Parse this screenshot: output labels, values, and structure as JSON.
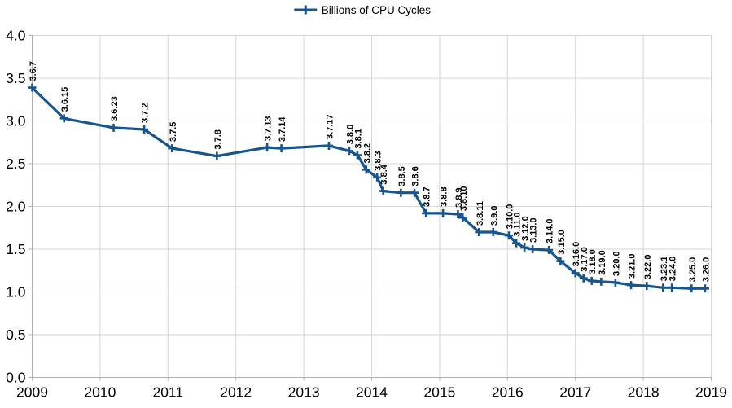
{
  "legend": {
    "label": "Billions of CPU Cycles"
  },
  "colors": {
    "series": "#17558f",
    "grid": "#d6d6d6",
    "axis": "#b0b0b0",
    "text": "#000000",
    "background": "#ffffff"
  },
  "chart_data": {
    "type": "line",
    "title": "",
    "legend_label": "Billions of CPU Cycles",
    "legend_position": "top-center",
    "grid": true,
    "marker": "plus",
    "xlim": [
      2009,
      2019
    ],
    "ylim": [
      0.0,
      4.0
    ],
    "y_tick_step": 0.5,
    "x_tick_labels": [
      "2009",
      "2010",
      "2011",
      "2012",
      "2013",
      "2014",
      "2015",
      "2016",
      "2017",
      "2018",
      "2019"
    ],
    "y_tick_labels": [
      "0.0",
      "0.5",
      "1.0",
      "1.5",
      "2.0",
      "2.5",
      "3.0",
      "3.5",
      "4.0"
    ],
    "x_ticks": [
      2009,
      2010,
      2011,
      2012,
      2013,
      2014,
      2015,
      2016,
      2017,
      2018,
      2019
    ],
    "y_ticks": [
      0.0,
      0.5,
      1.0,
      1.5,
      2.0,
      2.5,
      3.0,
      3.5,
      4.0
    ],
    "series_name": "Billions of CPU Cycles",
    "points": [
      {
        "label": "3.6.7",
        "x": 2009.0,
        "y": 3.39
      },
      {
        "label": "3.6.15",
        "x": 2009.47,
        "y": 3.03
      },
      {
        "label": "3.6.23",
        "x": 2010.2,
        "y": 2.92
      },
      {
        "label": "3.7.2",
        "x": 2010.65,
        "y": 2.9
      },
      {
        "label": "3.7.5",
        "x": 2011.06,
        "y": 2.68
      },
      {
        "label": "3.7.8",
        "x": 2011.72,
        "y": 2.59
      },
      {
        "label": "3.7.13",
        "x": 2012.46,
        "y": 2.69
      },
      {
        "label": "3.7.14",
        "x": 2012.67,
        "y": 2.68
      },
      {
        "label": "3.7.17",
        "x": 2013.37,
        "y": 2.71
      },
      {
        "label": "3.8.0",
        "x": 2013.67,
        "y": 2.65
      },
      {
        "label": "3.8.1",
        "x": 2013.79,
        "y": 2.6
      },
      {
        "label": "3.8.2",
        "x": 2013.92,
        "y": 2.43
      },
      {
        "label": "3.8.3",
        "x": 2014.08,
        "y": 2.34
      },
      {
        "label": "3.8.4",
        "x": 2014.17,
        "y": 2.18
      },
      {
        "label": "3.8.5",
        "x": 2014.43,
        "y": 2.16
      },
      {
        "label": "3.8.6",
        "x": 2014.63,
        "y": 2.16
      },
      {
        "label": "3.8.7",
        "x": 2014.8,
        "y": 1.92
      },
      {
        "label": "3.8.8",
        "x": 2015.05,
        "y": 1.92
      },
      {
        "label": "3.8.9",
        "x": 2015.27,
        "y": 1.91
      },
      {
        "label": "3.8.10",
        "x": 2015.34,
        "y": 1.87
      },
      {
        "label": "3.8.11",
        "x": 2015.58,
        "y": 1.7
      },
      {
        "label": "3.9.0",
        "x": 2015.79,
        "y": 1.7
      },
      {
        "label": "3.10.0",
        "x": 2016.02,
        "y": 1.66
      },
      {
        "label": "3.11.0",
        "x": 2016.13,
        "y": 1.57
      },
      {
        "label": "3.12.0",
        "x": 2016.25,
        "y": 1.52
      },
      {
        "label": "3.13.0",
        "x": 2016.37,
        "y": 1.5
      },
      {
        "label": "3.14.0",
        "x": 2016.61,
        "y": 1.49
      },
      {
        "label": "3.15.0",
        "x": 2016.78,
        "y": 1.36
      },
      {
        "label": "3.16.0",
        "x": 2017.0,
        "y": 1.22
      },
      {
        "label": "3.17.0",
        "x": 2017.12,
        "y": 1.16
      },
      {
        "label": "3.18.0",
        "x": 2017.24,
        "y": 1.13
      },
      {
        "label": "3.19.0",
        "x": 2017.38,
        "y": 1.12
      },
      {
        "label": "3.20.0",
        "x": 2017.59,
        "y": 1.11
      },
      {
        "label": "3.21.0",
        "x": 2017.82,
        "y": 1.08
      },
      {
        "label": "3.22.0",
        "x": 2018.05,
        "y": 1.07
      },
      {
        "label": "3.23.1",
        "x": 2018.29,
        "y": 1.05
      },
      {
        "label": "3.24.0",
        "x": 2018.42,
        "y": 1.05
      },
      {
        "label": "3.25.0",
        "x": 2018.71,
        "y": 1.04
      },
      {
        "label": "3.26.0",
        "x": 2018.91,
        "y": 1.04
      }
    ]
  }
}
